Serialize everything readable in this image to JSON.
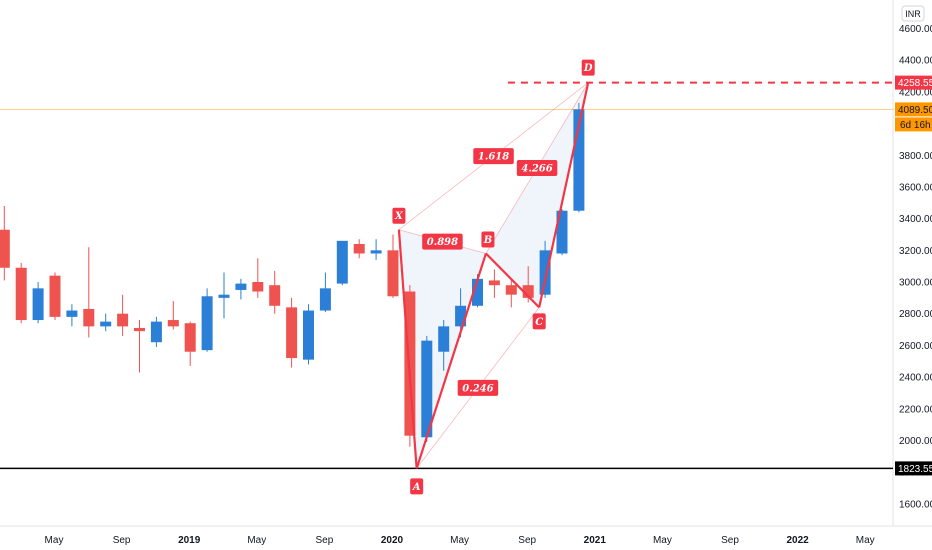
{
  "chart_data": {
    "type": "candlestick",
    "currency": "INR",
    "ylim": [
      1460,
      4780
    ],
    "yticks": [
      1600,
      1800,
      2000,
      2200,
      2400,
      2600,
      2800,
      3000,
      3200,
      3400,
      3600,
      3800,
      4000,
      4200,
      4400,
      4600
    ],
    "ytick_labels": [
      "1600.00",
      "1800.00",
      "2000.00",
      "2200.00",
      "2400.00",
      "2600.00",
      "2800.00",
      "3000.00",
      "3200.00",
      "3400.00",
      "3600.00",
      "3800.00",
      "4000.00",
      "4200.00",
      "4400.00",
      "4600.00"
    ],
    "xticks": [
      {
        "label": "May",
        "index": 3,
        "year": false
      },
      {
        "label": "Sep",
        "index": 7,
        "year": false
      },
      {
        "label": "2019",
        "index": 11,
        "year": true
      },
      {
        "label": "May",
        "index": 15,
        "year": false
      },
      {
        "label": "Sep",
        "index": 19,
        "year": false
      },
      {
        "label": "2020",
        "index": 23,
        "year": true
      },
      {
        "label": "May",
        "index": 27,
        "year": false
      },
      {
        "label": "Sep",
        "index": 31,
        "year": false
      },
      {
        "label": "2021",
        "index": 35,
        "year": true
      },
      {
        "label": "May",
        "index": 39,
        "year": false
      },
      {
        "label": "Sep",
        "index": 43,
        "year": false
      },
      {
        "label": "2022",
        "index": 47,
        "year": true
      },
      {
        "label": "May",
        "index": 51,
        "year": false
      }
    ],
    "candles": [
      {
        "o": 3330,
        "h": 3480,
        "l": 3010,
        "c": 3090
      },
      {
        "o": 3090,
        "h": 3120,
        "l": 2740,
        "c": 2760
      },
      {
        "o": 2760,
        "h": 3000,
        "l": 2740,
        "c": 2960
      },
      {
        "o": 3040,
        "h": 3060,
        "l": 2760,
        "c": 2780
      },
      {
        "o": 2780,
        "h": 2860,
        "l": 2720,
        "c": 2820
      },
      {
        "o": 2830,
        "h": 3220,
        "l": 2650,
        "c": 2720
      },
      {
        "o": 2720,
        "h": 2800,
        "l": 2690,
        "c": 2750
      },
      {
        "o": 2800,
        "h": 2920,
        "l": 2660,
        "c": 2720
      },
      {
        "o": 2710,
        "h": 2760,
        "l": 2430,
        "c": 2690
      },
      {
        "o": 2620,
        "h": 2780,
        "l": 2590,
        "c": 2750
      },
      {
        "o": 2760,
        "h": 2880,
        "l": 2700,
        "c": 2720
      },
      {
        "o": 2740,
        "h": 2750,
        "l": 2470,
        "c": 2560
      },
      {
        "o": 2570,
        "h": 2960,
        "l": 2560,
        "c": 2910
      },
      {
        "o": 2900,
        "h": 3060,
        "l": 2770,
        "c": 2920
      },
      {
        "o": 2950,
        "h": 3020,
        "l": 2890,
        "c": 2990
      },
      {
        "o": 3000,
        "h": 3150,
        "l": 2900,
        "c": 2940
      },
      {
        "o": 2980,
        "h": 3070,
        "l": 2800,
        "c": 2850
      },
      {
        "o": 2840,
        "h": 2900,
        "l": 2460,
        "c": 2520
      },
      {
        "o": 2510,
        "h": 2860,
        "l": 2480,
        "c": 2820
      },
      {
        "o": 2820,
        "h": 3060,
        "l": 2810,
        "c": 2960
      },
      {
        "o": 2990,
        "h": 3250,
        "l": 2980,
        "c": 3260
      },
      {
        "o": 3240,
        "h": 3270,
        "l": 3150,
        "c": 3180
      },
      {
        "o": 3180,
        "h": 3270,
        "l": 3140,
        "c": 3200
      },
      {
        "o": 3200,
        "h": 3300,
        "l": 2900,
        "c": 2910
      },
      {
        "o": 2940,
        "h": 2980,
        "l": 1960,
        "c": 2030
      },
      {
        "o": 2020,
        "h": 2660,
        "l": 1990,
        "c": 2630
      },
      {
        "o": 2560,
        "h": 2760,
        "l": 2440,
        "c": 2720
      },
      {
        "o": 2720,
        "h": 2960,
        "l": 2650,
        "c": 2850
      },
      {
        "o": 2850,
        "h": 3050,
        "l": 2840,
        "c": 3020
      },
      {
        "o": 3010,
        "h": 3080,
        "l": 2900,
        "c": 2980
      },
      {
        "o": 2980,
        "h": 3010,
        "l": 2840,
        "c": 2920
      },
      {
        "o": 2980,
        "h": 3100,
        "l": 2870,
        "c": 2900
      },
      {
        "o": 2920,
        "h": 3260,
        "l": 2900,
        "c": 3200
      },
      {
        "o": 3180,
        "h": 3460,
        "l": 3170,
        "c": 3450
      },
      {
        "o": 3450,
        "h": 4130,
        "l": 3440,
        "c": 4089.5
      }
    ],
    "pattern_points": [
      {
        "label": "X",
        "index": 23.35,
        "value": 3330
      },
      {
        "label": "A",
        "index": 24.4,
        "value": 1823.55
      },
      {
        "label": "B",
        "index": 28.5,
        "value": 3180
      },
      {
        "label": "C",
        "index": 31.65,
        "value": 2840
      },
      {
        "label": "D",
        "index": 34.55,
        "value": 4258.55
      }
    ],
    "ratios": [
      {
        "label": "0.898",
        "from": "X",
        "to": "B"
      },
      {
        "label": "0.246",
        "from": "A",
        "to": "C"
      },
      {
        "label": "1.618",
        "from": "X",
        "to": "D"
      },
      {
        "label": "4.266",
        "from": "B",
        "to": "D"
      }
    ],
    "horizontal_lines": [
      {
        "value": 4258.55,
        "label": "4258.55",
        "style": "dashed",
        "color": "#f23645"
      },
      {
        "value": 4089.5,
        "label": "4089.50",
        "style": "thin",
        "color": "#ff9800"
      },
      {
        "value": 1823.55,
        "label": "1823.55",
        "style": "solid",
        "color": "#000000"
      }
    ],
    "countdown": "6d 16h",
    "colors": {
      "up": "#2b7fd6",
      "down": "#ef5350",
      "pattern": "#f23645",
      "fill": "#e3ecf7",
      "last": "#ff9800",
      "support": "#000000"
    }
  }
}
